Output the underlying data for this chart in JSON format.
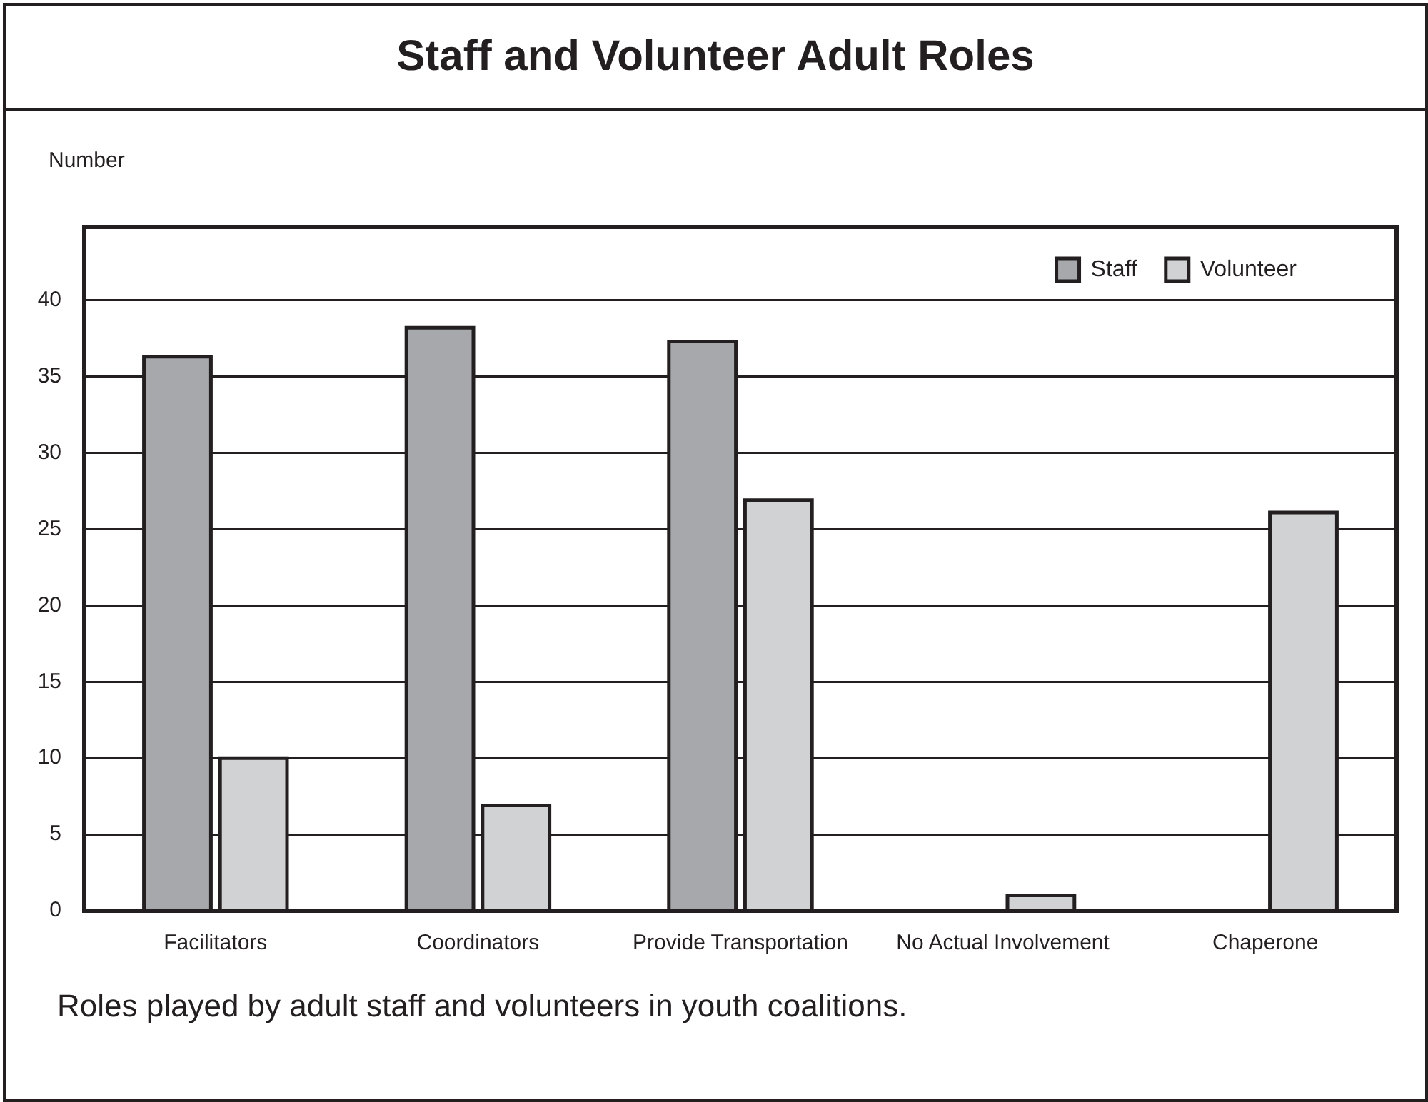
{
  "chart_data": {
    "type": "bar",
    "title": "Staff and Volunteer Adult Roles",
    "ylabel": "Number",
    "categories": [
      "Facilitators",
      "Coordinators",
      "Provide Transportation",
      "No Actual Involvement",
      "Chaperone"
    ],
    "series": [
      {
        "name": "Staff",
        "color": "#a7a8ac",
        "values": [
          36.3,
          38.2,
          37.3,
          null,
          null
        ]
      },
      {
        "name": "Volunteer",
        "color": "#d1d2d4",
        "values": [
          10,
          6.9,
          26.9,
          1,
          26.1
        ]
      }
    ],
    "ylim": [
      0,
      44.8
    ],
    "yticks": [
      0,
      5,
      10,
      15,
      20,
      25,
      30,
      35,
      40
    ],
    "grid": "y",
    "legend": "top right",
    "annotations": [
      "Roles played by adult staff and volunteers in youth coalitions."
    ]
  }
}
